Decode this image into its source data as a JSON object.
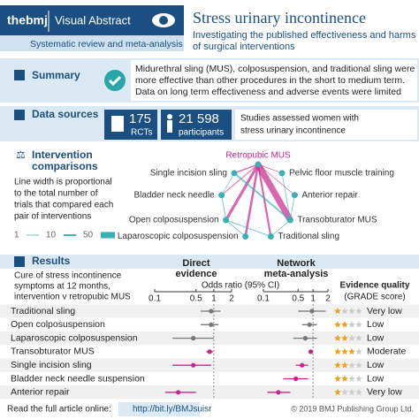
{
  "header": {
    "brand": "thebmj",
    "badge": "Visual Abstract",
    "study_type": "Systematic review and meta-analysis",
    "title": "Stress urinary incontinence",
    "subtitle": [
      "Investigating the published effectiveness and harms",
      "of surgical interventions"
    ]
  },
  "summary": {
    "heading": "Summary",
    "lines": [
      "Midurethral sling (MUS), colposuspension, and traditional sling were",
      "more effective than other procedures in the short to medium term.",
      "Data on long term effectiveness and adverse events were limited"
    ]
  },
  "data_sources": {
    "heading": "Data sources",
    "rcts": {
      "value": "175",
      "label": "RCTs"
    },
    "participants": {
      "value": "21 598",
      "label": "participants"
    },
    "description": [
      "Studies assessed women with",
      "stress urinary incontinence"
    ]
  },
  "interventions": {
    "heading": [
      "Intervention",
      "comparisons"
    ],
    "note": [
      "Line width is proportional",
      "to the total number of",
      "trials that compared each",
      "pair of interventions"
    ],
    "legend": [
      1,
      10,
      50
    ],
    "nodes": [
      "Retropubic MUS",
      "Pelvic floor muscle training",
      "Anterior repair",
      "Transobturator MUS",
      "Traditional sling",
      "Laparoscopic colposuspension",
      "Open colposuspension",
      "Bladder neck needle",
      "Single incision sling"
    ],
    "edges": [
      {
        "from": 0,
        "to": 3,
        "trials": 50
      },
      {
        "from": 0,
        "to": 6,
        "trials": 20
      },
      {
        "from": 0,
        "to": 5,
        "trials": 15
      },
      {
        "from": 0,
        "to": 4,
        "trials": 12
      },
      {
        "from": 0,
        "to": 8,
        "trials": 6
      },
      {
        "from": 0,
        "to": 7,
        "trials": 3
      },
      {
        "from": 3,
        "to": 8,
        "trials": 10
      },
      {
        "from": 3,
        "to": 4,
        "trials": 2
      },
      {
        "from": 3,
        "to": 2,
        "trials": 2
      },
      {
        "from": 3,
        "to": 1,
        "trials": 2
      },
      {
        "from": 6,
        "to": 7,
        "trials": 3
      },
      {
        "from": 6,
        "to": 4,
        "trials": 3
      },
      {
        "from": 5,
        "to": 6,
        "trials": 3
      },
      {
        "from": 0,
        "to": 1,
        "trials": 1
      },
      {
        "from": 0,
        "to": 2,
        "trials": 1
      },
      {
        "from": 7,
        "to": 8,
        "trials": 1
      }
    ]
  },
  "results": {
    "heading": "Results",
    "outcome": [
      "Cure of stress incontinence",
      "symptoms at 12 months,",
      "intervention v retropubic MUS"
    ],
    "direct_heading": [
      "Direct",
      "evidence"
    ],
    "network_heading": [
      "Network",
      "meta-analysis"
    ],
    "axis_title": "Odds ratio (95% CI)",
    "quality_heading": "Evidence quality",
    "quality_sub": "(GRADE score)",
    "xlim": [
      0.1,
      2
    ],
    "xticks": [
      0.1,
      0.5,
      1,
      2
    ],
    "stars_max": 4,
    "rows": [
      {
        "label": "Traditional sling",
        "direct": [
          0.9,
          0.6,
          1.3
        ],
        "network": [
          0.95,
          0.5,
          1.8
        ],
        "stars": 1,
        "grade": "Very low"
      },
      {
        "label": "Open colposuspension",
        "direct": [
          0.9,
          0.6,
          1.2
        ],
        "network": [
          0.85,
          0.6,
          1.2
        ],
        "stars": 2,
        "grade": "Low"
      },
      {
        "label": "Laparoscopic colposuspension",
        "direct": [
          0.45,
          0.2,
          1.0
        ],
        "network": [
          0.7,
          0.4,
          1.2
        ],
        "stars": 2,
        "grade": "Low"
      },
      {
        "label": "Transobturator MUS",
        "direct": [
          0.85,
          0.75,
          0.97
        ],
        "network": [
          0.9,
          0.82,
          0.99
        ],
        "stars": 3,
        "grade": "Moderate"
      },
      {
        "label": "Single incision sling",
        "direct": [
          0.45,
          0.2,
          0.9
        ],
        "network": [
          0.6,
          0.45,
          0.8
        ],
        "stars": 2,
        "grade": "Low"
      },
      {
        "label": "Bladder neck needle suspension",
        "direct": null,
        "network": [
          0.45,
          0.25,
          0.8
        ],
        "stars": 2,
        "grade": "Low"
      },
      {
        "label": "Anterior repair",
        "direct": [
          0.25,
          0.15,
          0.5
        ],
        "network": [
          0.2,
          0.12,
          0.35
        ],
        "stars": 1,
        "grade": "Very low"
      }
    ]
  },
  "footer": {
    "read": "Read the full article online:",
    "link": "http://bit.ly/BMJsuisr",
    "copyright": "© 2019 BMJ Publishing Group Ltd."
  }
}
